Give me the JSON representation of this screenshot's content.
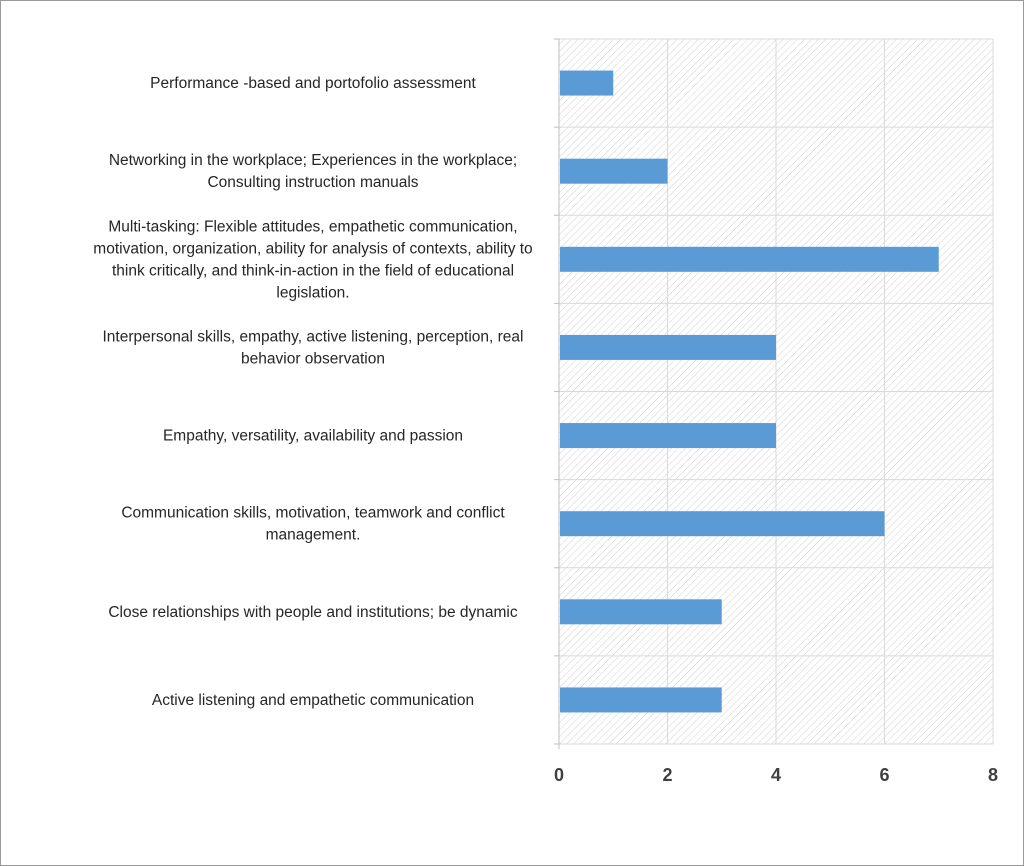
{
  "chart_data": {
    "type": "bar",
    "orientation": "horizontal",
    "categories": [
      "Active listening and empathetic communication",
      "Close relationships with people and institutions; be dynamic",
      "Communication skills, motivation, teamwork and conflict management.",
      "Empathy, versatility, availability and passion",
      "Interpersonal skills, empathy, active listening, perception, real behavior observation",
      "Multi-tasking: Flexible attitudes, empathetic communication, motivation, organization, ability for analysis of contexts, ability to think critically, and think-in-action in the field of educational legislation.",
      "Networking in the workplace; Experiences in the workplace; Consulting instruction manuals",
      "Performance -based and portofolio assessment"
    ],
    "category_label_lines": [
      [
        "Active listening  and empathetic communication"
      ],
      [
        "Close relationships with people and institutions; be dynamic"
      ],
      [
        "Communication skills, motivation, teamwork and conflict",
        "management."
      ],
      [
        "Empathy, versatility, availability and passion"
      ],
      [
        "Interpersonal skills, empathy, active listening, perception, real",
        "behavior observation"
      ],
      [
        "Multi-tasking: Flexible attitudes, empathetic communication,",
        "motivation, organization, ability for analysis of contexts, ability to",
        "think critically, and think-in-action in the field of educational",
        "legislation."
      ],
      [
        "Networking in the workplace; Experiences in the workplace;",
        "Consulting instruction manuals"
      ],
      [
        "Performance -based and portofolio assessment"
      ]
    ],
    "values": [
      3,
      3,
      6,
      4,
      4,
      7,
      2,
      1
    ],
    "xlim": [
      0,
      8
    ],
    "x_ticks": [
      "0",
      "2",
      "4",
      "6",
      "8"
    ],
    "grid": true,
    "legend": "none",
    "title": "",
    "xlabel": "",
    "ylabel": "",
    "colors": {
      "bar": "#5b9bd5",
      "grid": "#d9d9d9",
      "hatch": "#d0d0d0",
      "frame": "#9a9a9a"
    }
  }
}
